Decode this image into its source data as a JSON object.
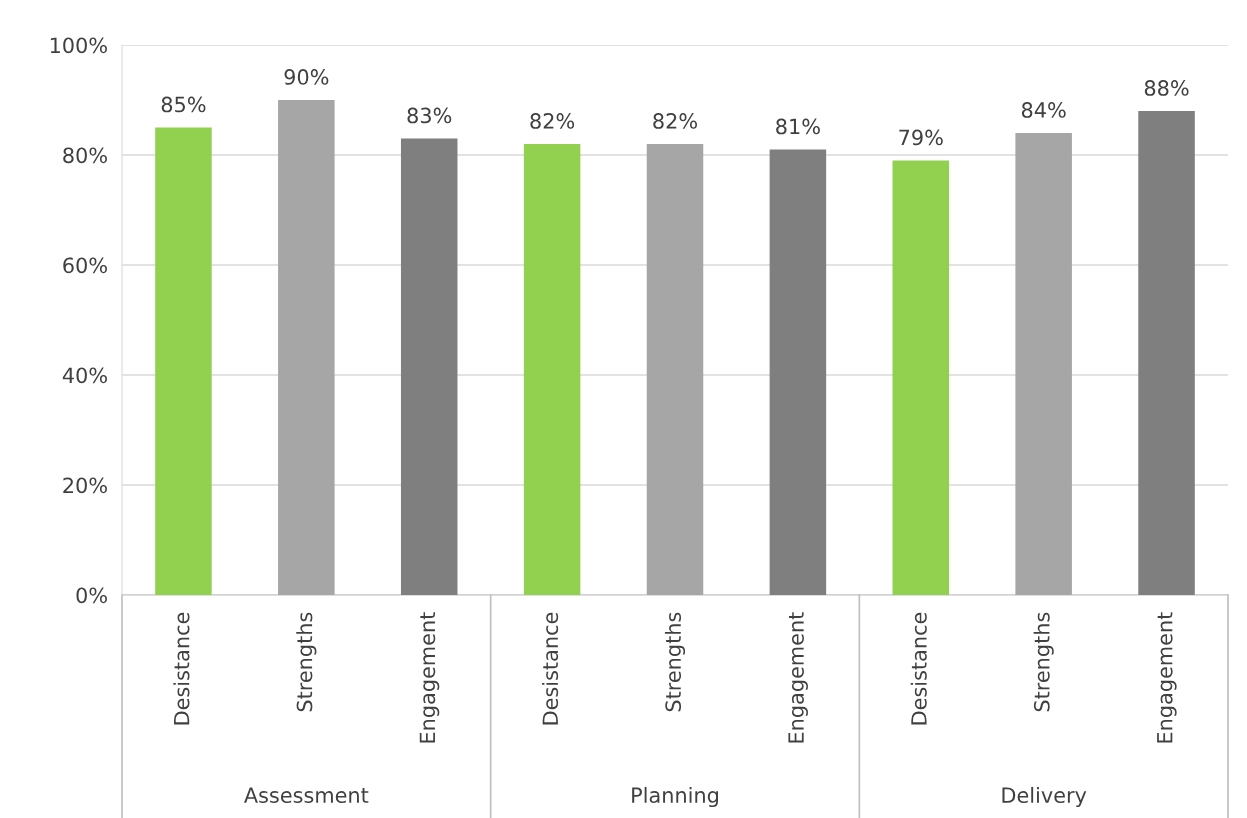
{
  "chart_data": {
    "type": "bar",
    "categories": [
      "Desistance",
      "Strengths",
      "Engagement",
      "Desistance",
      "Strengths",
      "Engagement",
      "Desistance",
      "Strengths",
      "Engagement"
    ],
    "values": [
      85,
      90,
      83,
      82,
      82,
      81,
      79,
      84,
      88
    ],
    "colors": [
      "#92d050",
      "#a6a6a6",
      "#7f7f7f",
      "#92d050",
      "#a6a6a6",
      "#7f7f7f",
      "#92d050",
      "#a6a6a6",
      "#7f7f7f"
    ],
    "data_labels": true,
    "value_labels": [
      "85%",
      "90%",
      "83%",
      "82%",
      "82%",
      "81%",
      "79%",
      "84%",
      "88%"
    ],
    "ylim": [
      0,
      100
    ],
    "yticks": [
      {
        "value": 0,
        "label": "0%"
      },
      {
        "value": 20,
        "label": "20%"
      },
      {
        "value": 40,
        "label": "40%"
      },
      {
        "value": 60,
        "label": "60%"
      },
      {
        "value": 80,
        "label": "80%"
      },
      {
        "value": 100,
        "label": "100%"
      }
    ],
    "grid": "y",
    "annotations": [
      "Assessment",
      "Planning",
      "Delivery"
    ]
  }
}
